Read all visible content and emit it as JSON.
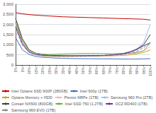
{
  "chart_data": {
    "type": "line",
    "categories": [
      "0%",
      "5%",
      "10%",
      "15%",
      "20%",
      "25%",
      "30%",
      "35%",
      "40%",
      "45%",
      "50%",
      "55%",
      "60%",
      "65%",
      "70%",
      "75%",
      "80%",
      "85%",
      "90%",
      "95%",
      "100%"
    ],
    "ylim": [
      0,
      3000
    ],
    "yticks": [
      0,
      500,
      1000,
      1500,
      2000,
      2500,
      3000
    ],
    "grid": true,
    "legend": "bottom",
    "series": [
      {
        "name": "Intel Optane SSD 900P (280GB)",
        "color": "#cc0000",
        "values": [
          2580,
          2530,
          2490,
          2460,
          2440,
          2420,
          2400,
          2380,
          2370,
          2360,
          2350,
          2340,
          2330,
          2320,
          2310,
          2300,
          2290,
          2280,
          2270,
          2260,
          2220
        ]
      },
      {
        "name": "Intel 600p (1TB)",
        "color": "#4472c4",
        "values": [
          1350,
          750,
          520,
          420,
          380,
          360,
          340,
          330,
          320,
          315,
          310,
          308,
          305,
          302,
          300,
          295,
          292,
          290,
          292,
          300,
          310
        ]
      },
      {
        "name": "Optane Memory + HDD",
        "color": "#d4a020",
        "values": [
          2100,
          1100,
          650,
          500,
          450,
          430,
          420,
          420,
          420,
          425,
          430,
          435,
          440,
          445,
          450,
          460,
          475,
          500,
          550,
          620,
          750
        ]
      },
      {
        "name": "Plextor M8Pe (1TB)",
        "color": "#f4b8c0",
        "values": [
          2000,
          1050,
          620,
          510,
          470,
          450,
          445,
          440,
          440,
          442,
          445,
          448,
          450,
          455,
          460,
          475,
          500,
          540,
          600,
          700,
          900
        ]
      },
      {
        "name": "Samsung 960 Pro (2TB)",
        "color": "#9dc3e6",
        "values": [
          2250,
          1200,
          700,
          560,
          510,
          480,
          460,
          455,
          450,
          450,
          452,
          455,
          460,
          468,
          480,
          510,
          560,
          650,
          800,
          1100,
          2000
        ]
      },
      {
        "name": "Corsair NX500 (800GB)",
        "color": "#404040",
        "values": [
          2300,
          1300,
          750,
          580,
          520,
          490,
          470,
          460,
          455,
          455,
          455,
          458,
          460,
          470,
          490,
          520,
          570,
          650,
          780,
          1000,
          1500
        ]
      },
      {
        "name": "Intel SSD 750 (1.2TB)",
        "color": "#70ad47",
        "values": [
          2100,
          1200,
          720,
          580,
          530,
          520,
          530,
          545,
          555,
          565,
          570,
          570,
          568,
          565,
          560,
          560,
          565,
          580,
          620,
          700,
          1100
        ]
      },
      {
        "name": "OCZ RD400 (1TB)",
        "color": "#7030a0",
        "values": [
          1900,
          1050,
          640,
          520,
          475,
          455,
          448,
          445,
          445,
          448,
          450,
          455,
          460,
          470,
          490,
          520,
          560,
          640,
          760,
          950,
          1100
        ]
      },
      {
        "name": "Samsung 960 EVO (1TB)",
        "color": "#888888",
        "line_style": "dashed",
        "values": [
          1800,
          980,
          610,
          500,
          460,
          445,
          438,
          435,
          435,
          437,
          440,
          444,
          448,
          456,
          468,
          490,
          525,
          585,
          680,
          860,
          1100
        ]
      }
    ]
  }
}
